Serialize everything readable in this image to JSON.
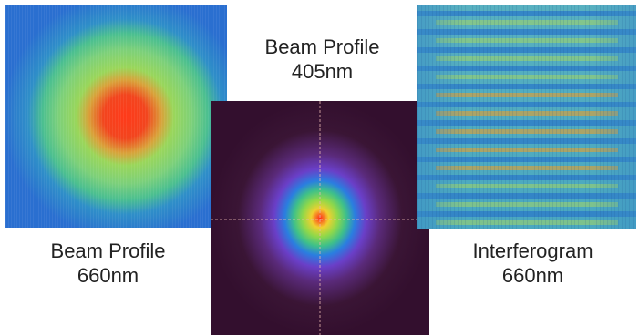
{
  "panels": {
    "beam_profile_660": {
      "title_line1": "Beam Profile",
      "title_line2": "660nm",
      "colormap": "jet",
      "background_color": "#2a6fd0",
      "center_color": "#ff3a1a"
    },
    "beam_profile_405": {
      "title_line1": "Beam Profile",
      "title_line2": "405nm",
      "colormap": "plasma-like",
      "background_color": "#330f2e",
      "center_color": "#ff2a1a",
      "crosshair": true
    },
    "interferogram_660": {
      "title_line1": "Interferogram",
      "title_line2": "660nm",
      "colormap": "jet",
      "fringe_orientation": "horizontal"
    }
  }
}
